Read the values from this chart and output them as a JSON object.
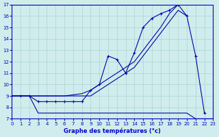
{
  "title": "Graphe des températures (°c)",
  "x_all": [
    0,
    1,
    2,
    3,
    4,
    5,
    6,
    7,
    8,
    9,
    10,
    11,
    12,
    13,
    14,
    15,
    16,
    17,
    18,
    19,
    20,
    21,
    22,
    23
  ],
  "line_diag1_x": [
    0,
    1,
    2,
    3,
    4,
    5,
    6,
    7,
    8,
    9,
    10,
    11,
    12,
    13,
    14,
    15,
    16,
    17,
    18,
    19
  ],
  "line_diag1_y": [
    9.0,
    9.0,
    9.0,
    9.0,
    9.0,
    9.0,
    9.0,
    9.1,
    9.2,
    9.5,
    10.0,
    10.5,
    11.0,
    11.5,
    12.0,
    13.0,
    14.0,
    15.0,
    16.2,
    17.0
  ],
  "line_diag2_x": [
    0,
    1,
    2,
    3,
    4,
    5,
    6,
    7,
    8,
    9,
    10,
    11,
    12,
    13,
    14,
    15,
    16,
    17,
    18,
    19,
    20
  ],
  "line_diag2_y": [
    9.0,
    9.0,
    9.0,
    9.0,
    9.0,
    9.0,
    9.0,
    9.0,
    9.0,
    9.0,
    9.5,
    10.0,
    10.5,
    11.0,
    11.5,
    12.5,
    13.5,
    14.5,
    15.5,
    16.5,
    16.0
  ],
  "line_jagged_x": [
    0,
    1,
    2,
    3,
    4,
    5,
    6,
    7,
    8,
    9,
    10,
    11,
    12,
    13,
    14,
    15,
    16,
    17,
    18,
    19,
    20,
    21,
    22
  ],
  "line_jagged_y": [
    9.0,
    9.0,
    9.0,
    8.5,
    8.5,
    8.5,
    8.5,
    8.5,
    8.5,
    9.5,
    10.0,
    12.5,
    12.2,
    11.0,
    12.8,
    15.0,
    15.8,
    16.2,
    16.5,
    17.0,
    16.0,
    12.5,
    7.5
  ],
  "line_flat_x": [
    0,
    1,
    2,
    3,
    4,
    5,
    6,
    7,
    8,
    9,
    10,
    11,
    12,
    13,
    14,
    15,
    16,
    17,
    18,
    19,
    20,
    21,
    22,
    23
  ],
  "line_flat_y": [
    9.0,
    9.0,
    9.0,
    7.5,
    7.5,
    7.5,
    7.5,
    7.5,
    7.5,
    7.5,
    7.5,
    7.5,
    7.5,
    7.5,
    7.5,
    7.5,
    7.5,
    7.5,
    7.5,
    7.5,
    7.5,
    7.0,
    7.0,
    7.0
  ],
  "ylim": [
    7,
    17
  ],
  "xlim": [
    0,
    23
  ],
  "bg_color": "#d0ecec",
  "line_color": "#0000aa",
  "grid_color": "#a8d4d4",
  "label_color": "#0000cc"
}
